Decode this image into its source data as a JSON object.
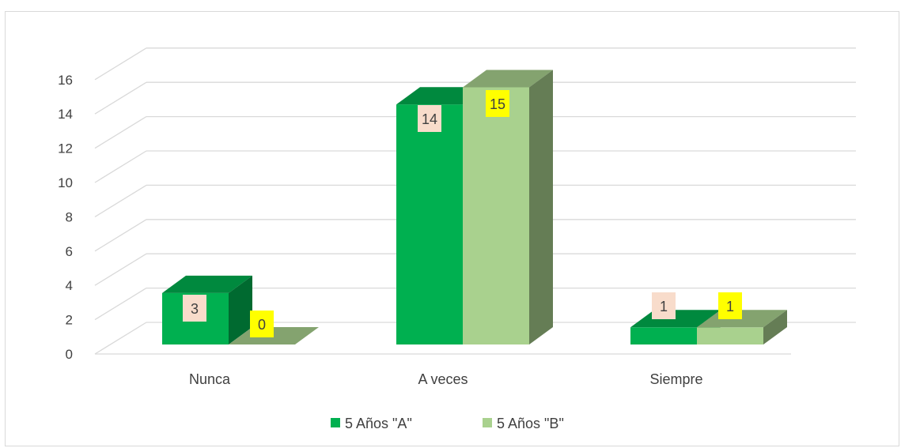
{
  "chart_data": {
    "type": "bar",
    "three_d": true,
    "categories": [
      "Nunca",
      "A veces",
      "Siempre"
    ],
    "series": [
      {
        "name": "5 Años  \"A\"",
        "values": [
          3,
          14,
          1
        ],
        "color": "#00b050",
        "label_bg": "#f8dccb"
      },
      {
        "name": "5 Años  \"B\"",
        "values": [
          0,
          15,
          1
        ],
        "color": "#a9d18e",
        "label_bg": "#ffff00"
      }
    ],
    "ylim": [
      0,
      16
    ],
    "yticks": [
      0,
      2,
      4,
      6,
      8,
      10,
      12,
      14,
      16
    ],
    "grid": true,
    "legend": "bottom",
    "title": "",
    "xlabel": "",
    "ylabel": ""
  }
}
